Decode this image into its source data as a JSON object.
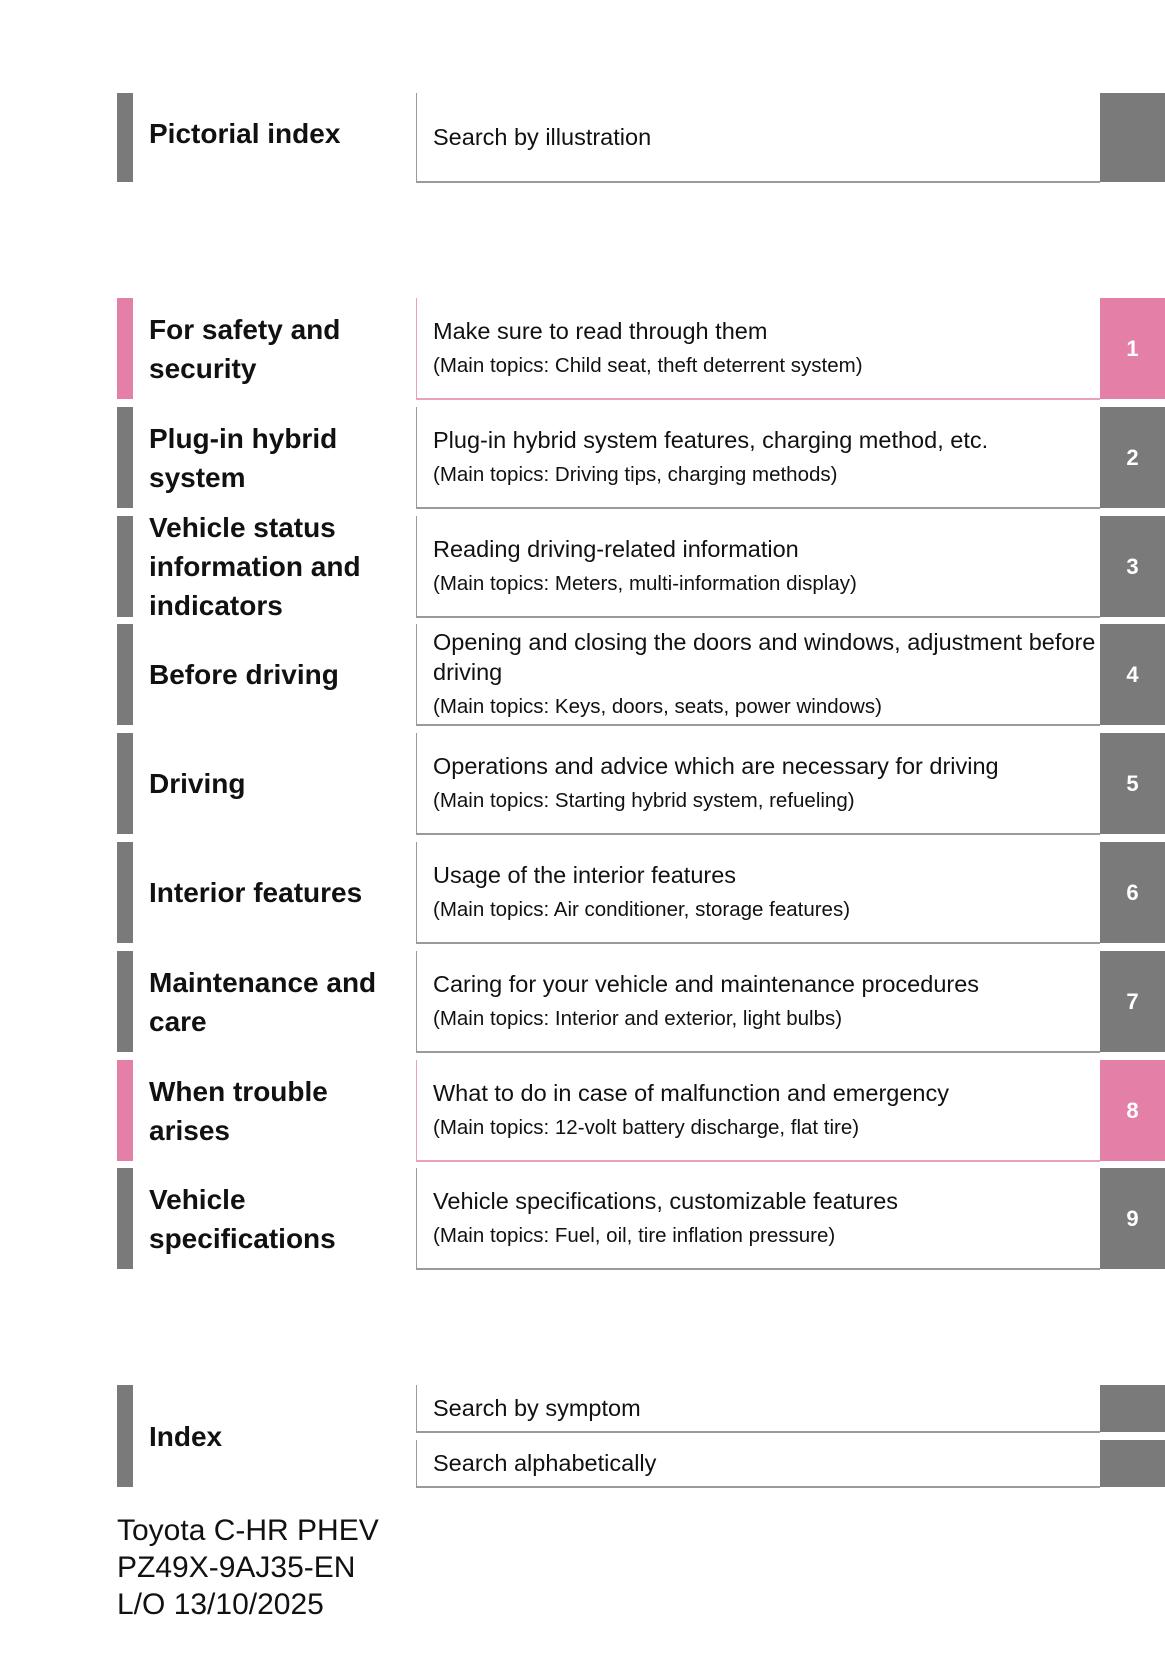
{
  "pictorial": {
    "title": "Pictorial index",
    "description": "Search by illustration"
  },
  "colors": {
    "gray": "#7a7a7a",
    "pink": "#e47fa8"
  },
  "chapters": [
    {
      "number": "1",
      "title": "For safety and security",
      "description": "Make sure to read through them",
      "topics": "(Main topics: Child seat, theft deterrent system)",
      "color": "pink"
    },
    {
      "number": "2",
      "title": "Plug-in hybrid system",
      "description": "Plug-in hybrid system features, charging method, etc.",
      "topics": "(Main topics: Driving tips, charging methods)",
      "color": "gray"
    },
    {
      "number": "3",
      "title": "Vehicle status information and indicators",
      "description": "Reading driving-related information",
      "topics": "(Main topics: Meters, multi-information display)",
      "color": "gray"
    },
    {
      "number": "4",
      "title": "Before driving",
      "description": "Opening and closing the doors and windows, adjustment before driving",
      "topics": "(Main topics: Keys, doors, seats, power windows)",
      "color": "gray"
    },
    {
      "number": "5",
      "title": "Driving",
      "description": "Operations and advice which are necessary for driving",
      "topics": "(Main topics: Starting hybrid system, refueling)",
      "color": "gray"
    },
    {
      "number": "6",
      "title": "Interior features",
      "description": "Usage of the interior features",
      "topics": "(Main topics: Air conditioner, storage features)",
      "color": "gray"
    },
    {
      "number": "7",
      "title": "Maintenance and care",
      "description": "Caring for your vehicle and maintenance procedures",
      "topics": "(Main topics: Interior and exterior, light bulbs)",
      "color": "gray"
    },
    {
      "number": "8",
      "title": "When trouble arises",
      "description": "What to do in case of malfunction and emergency",
      "topics": "(Main topics: 12-volt battery discharge, flat tire)",
      "color": "pink"
    },
    {
      "number": "9",
      "title": "Vehicle specifications",
      "description": "Vehicle specifications, customizable features",
      "topics": "(Main topics: Fuel, oil, tire inflation pressure)",
      "color": "gray"
    }
  ],
  "index": {
    "title": "Index",
    "items": [
      "Search by symptom",
      "Search alphabetically"
    ]
  },
  "footer": {
    "model": "Toyota C-HR PHEV",
    "code": "PZ49X-9AJ35-EN",
    "layout_date": "L/O 13/10/2025"
  }
}
